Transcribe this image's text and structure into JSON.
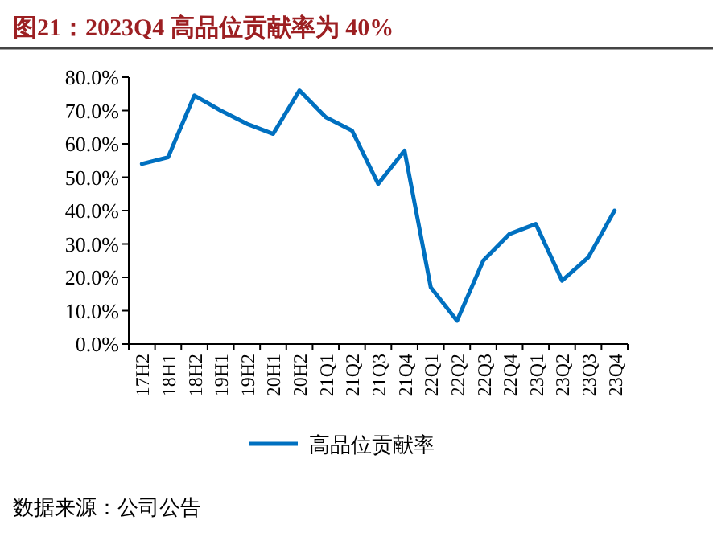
{
  "chart_data": {
    "type": "line",
    "title": "图21：2023Q4 高品位贡献率为 40%",
    "categories": [
      "17H2",
      "18H1",
      "18H2",
      "19H1",
      "19H2",
      "20H1",
      "20H2",
      "21Q1",
      "21Q2",
      "21Q3",
      "21Q4",
      "22Q1",
      "22Q2",
      "22Q3",
      "22Q4",
      "23Q1",
      "23Q2",
      "23Q3",
      "23Q4"
    ],
    "series": [
      {
        "name": "高品位贡献率",
        "color": "#0070c0",
        "values": [
          54,
          56,
          74.5,
          70,
          66,
          63,
          76,
          68,
          64,
          48,
          58,
          17,
          7,
          25,
          33,
          36,
          19,
          26,
          40
        ]
      }
    ],
    "ylim": [
      0,
      80
    ],
    "yticks": [
      {
        "value": 0,
        "label": "0.0%"
      },
      {
        "value": 10,
        "label": "10.0%"
      },
      {
        "value": 20,
        "label": "20.0%"
      },
      {
        "value": 30,
        "label": "30.0%"
      },
      {
        "value": 40,
        "label": "40.0%"
      },
      {
        "value": 50,
        "label": "50.0%"
      },
      {
        "value": 60,
        "label": "60.0%"
      },
      {
        "value": 70,
        "label": "70.0%"
      },
      {
        "value": 80,
        "label": "80.0%"
      }
    ],
    "grid": false,
    "legend": "bottom",
    "marker": "none",
    "line_style": "solid",
    "annotations": [
      "数据来源：公司公告"
    ]
  }
}
